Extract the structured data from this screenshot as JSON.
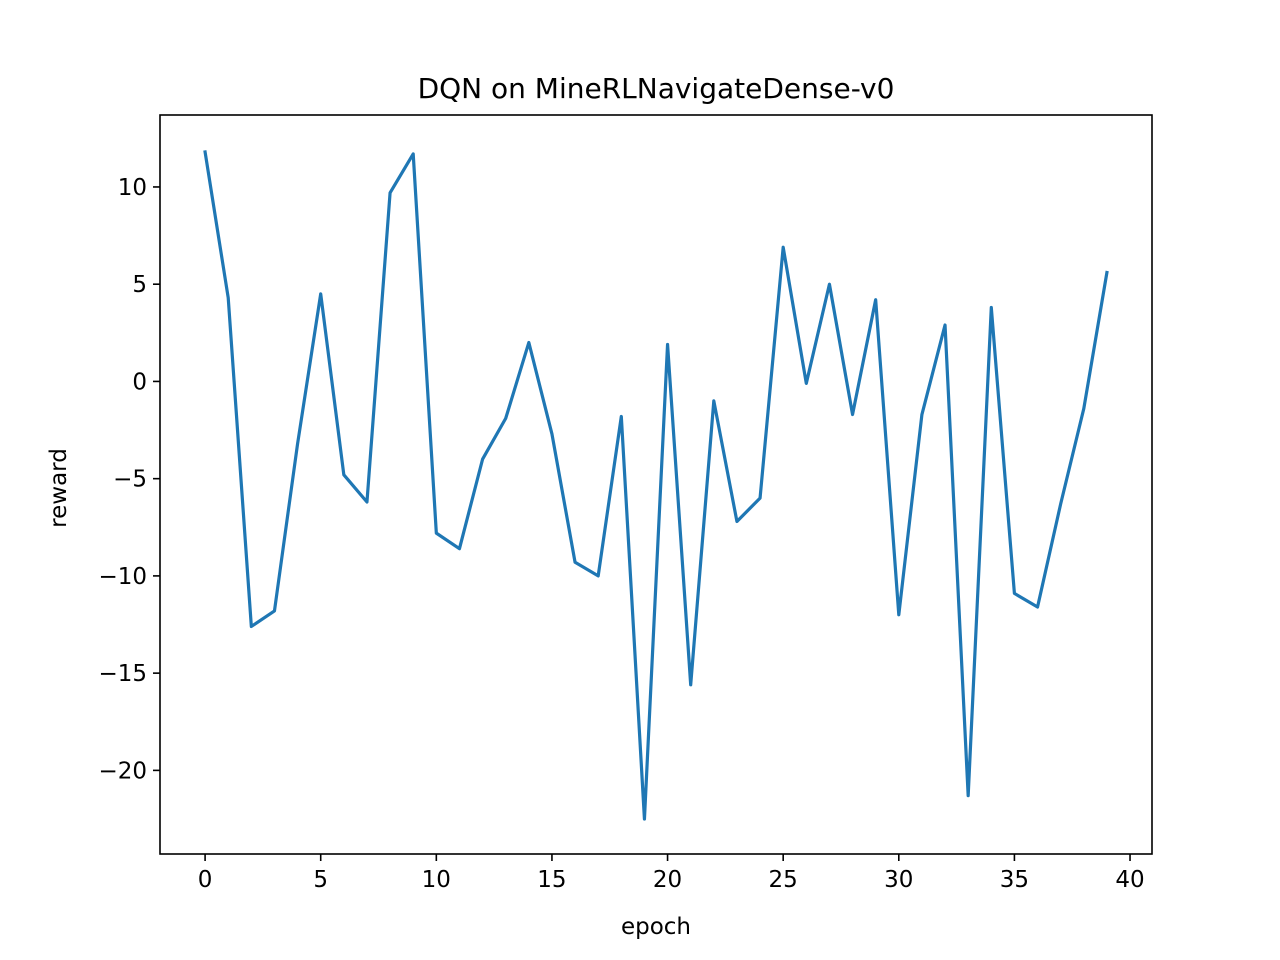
{
  "chart_data": {
    "type": "line",
    "title": "DQN on MineRLNavigateDense-v0",
    "xlabel": "epoch",
    "ylabel": "reward",
    "xlim": [
      -1.95,
      40.95
    ],
    "ylim": [
      -24.3,
      13.7
    ],
    "x_ticks": [
      0,
      5,
      10,
      15,
      20,
      25,
      30,
      35,
      40
    ],
    "y_ticks": [
      10,
      5,
      0,
      -5,
      -10,
      -15,
      -20
    ],
    "x_tick_labels": [
      "0",
      "5",
      "10",
      "15",
      "20",
      "25",
      "30",
      "35",
      "40"
    ],
    "y_tick_labels": [
      "10",
      "5",
      "0",
      "−5",
      "−10",
      "−15",
      "−20"
    ],
    "grid": false,
    "legend": "none",
    "series": [
      {
        "color": "#1f77b4",
        "x": [
          0,
          1,
          2,
          3,
          4,
          5,
          6,
          7,
          8,
          9,
          10,
          11,
          12,
          13,
          14,
          15,
          16,
          17,
          18,
          19,
          20,
          21,
          22,
          23,
          24,
          25,
          26,
          27,
          28,
          29,
          30,
          31,
          32,
          33,
          34,
          35,
          36,
          37,
          38,
          39
        ],
        "values": [
          11.8,
          4.3,
          -12.6,
          -11.8,
          -3.2,
          4.5,
          -4.8,
          -6.2,
          9.7,
          11.7,
          -7.8,
          -8.6,
          -4.0,
          -1.9,
          2.0,
          -2.7,
          -9.3,
          -10.0,
          -1.8,
          -22.5,
          1.9,
          -15.6,
          -1.0,
          -7.2,
          -6.0,
          6.9,
          -0.1,
          5.0,
          -1.7,
          4.2,
          -12.0,
          -1.7,
          2.9,
          -21.3,
          3.8,
          -10.9,
          -11.6,
          -6.3,
          -1.4,
          5.6
        ]
      }
    ]
  }
}
